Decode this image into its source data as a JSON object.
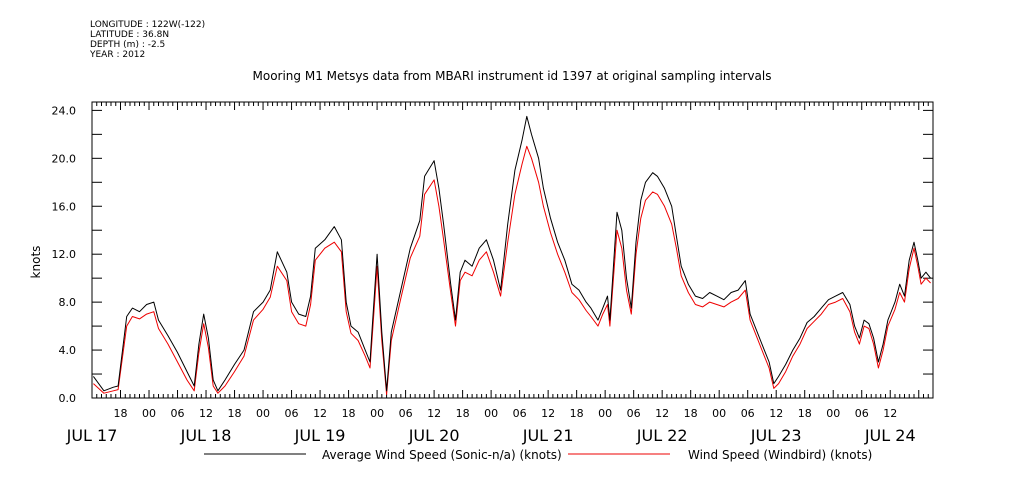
{
  "meta": {
    "longitude": "LONGITUDE : 122W(-122)",
    "latitude": "LATITUDE : 36.8N",
    "depth": "DEPTH (m) : -2.5",
    "year": "YEAR : 2012"
  },
  "chart_data": {
    "type": "line",
    "title": "Mooring M1 Metsys data from MBARI instrument id 1397 at original sampling intervals",
    "ylabel": "knots",
    "xlabel": "",
    "ylim": [
      0,
      24.7
    ],
    "xlim_hours": [
      12,
      189
    ],
    "yticks": [
      "0.0",
      "4.0",
      "8.0",
      "12.0",
      "16.0",
      "20.0",
      "24.0"
    ],
    "yticks_values": [
      0,
      4,
      8,
      12,
      16,
      20,
      24
    ],
    "x_hour_ticks": [
      {
        "h": 18,
        "label": "18"
      },
      {
        "h": 24,
        "label": "00"
      },
      {
        "h": 30,
        "label": "06"
      },
      {
        "h": 36,
        "label": "12"
      },
      {
        "h": 42,
        "label": "18"
      },
      {
        "h": 48,
        "label": "00"
      },
      {
        "h": 54,
        "label": "06"
      },
      {
        "h": 60,
        "label": "12"
      },
      {
        "h": 66,
        "label": "18"
      },
      {
        "h": 72,
        "label": "00"
      },
      {
        "h": 78,
        "label": "06"
      },
      {
        "h": 84,
        "label": "12"
      },
      {
        "h": 90,
        "label": "18"
      },
      {
        "h": 96,
        "label": "00"
      },
      {
        "h": 102,
        "label": "06"
      },
      {
        "h": 108,
        "label": "12"
      },
      {
        "h": 114,
        "label": "18"
      },
      {
        "h": 120,
        "label": "00"
      },
      {
        "h": 126,
        "label": "06"
      },
      {
        "h": 132,
        "label": "12"
      },
      {
        "h": 138,
        "label": "18"
      },
      {
        "h": 144,
        "label": "00"
      },
      {
        "h": 150,
        "label": "06"
      },
      {
        "h": 156,
        "label": "12"
      },
      {
        "h": 162,
        "label": "18"
      },
      {
        "h": 168,
        "label": "00"
      },
      {
        "h": 174,
        "label": "06"
      },
      {
        "h": 180,
        "label": "12"
      }
    ],
    "x_day_labels": [
      {
        "h": 12,
        "label": "JUL 17"
      },
      {
        "h": 36,
        "label": "JUL 18"
      },
      {
        "h": 60,
        "label": "JUL 19"
      },
      {
        "h": 84,
        "label": "JUL 20"
      },
      {
        "h": 108,
        "label": "JUL 21"
      },
      {
        "h": 132,
        "label": "JUL 22"
      },
      {
        "h": 156,
        "label": "JUL 23"
      },
      {
        "h": 180,
        "label": "JUL 24"
      }
    ],
    "x_units": "hours after 2012-07-16 12:00",
    "series": [
      {
        "name": "Average Wind Speed (Sonic-n/a) (knots)",
        "color": "#000000",
        "points": [
          [
            12.3,
            1.8
          ],
          [
            14.5,
            0.6
          ],
          [
            16.5,
            0.9
          ],
          [
            17.5,
            1.0
          ],
          [
            19.3,
            6.8
          ],
          [
            20.5,
            7.5
          ],
          [
            22,
            7.2
          ],
          [
            23.5,
            7.8
          ],
          [
            25,
            8.0
          ],
          [
            26,
            6.5
          ],
          [
            28,
            5.2
          ],
          [
            30,
            3.8
          ],
          [
            32,
            2.2
          ],
          [
            33.5,
            1.0
          ],
          [
            34.5,
            4.5
          ],
          [
            35.5,
            7.0
          ],
          [
            36.5,
            5.0
          ],
          [
            37.5,
            1.5
          ],
          [
            38.5,
            0.6
          ],
          [
            40,
            1.5
          ],
          [
            42,
            2.8
          ],
          [
            44,
            4.0
          ],
          [
            46,
            7.2
          ],
          [
            48,
            8.0
          ],
          [
            49.5,
            9.0
          ],
          [
            51,
            12.2
          ],
          [
            53,
            10.5
          ],
          [
            54,
            8.0
          ],
          [
            55.5,
            7.0
          ],
          [
            57,
            6.8
          ],
          [
            58,
            8.5
          ],
          [
            59,
            12.5
          ],
          [
            61,
            13.2
          ],
          [
            63,
            14.3
          ],
          [
            64.5,
            13.2
          ],
          [
            65.5,
            8.0
          ],
          [
            66.5,
            6.0
          ],
          [
            68,
            5.5
          ],
          [
            69.5,
            4.0
          ],
          [
            70.5,
            3.0
          ],
          [
            71,
            6.0
          ],
          [
            72,
            12.0
          ],
          [
            73,
            5.5
          ],
          [
            74,
            0.6
          ],
          [
            75,
            5.5
          ],
          [
            77,
            9.0
          ],
          [
            79,
            12.5
          ],
          [
            81,
            14.8
          ],
          [
            82,
            18.5
          ],
          [
            84,
            19.8
          ],
          [
            85,
            17.5
          ],
          [
            86,
            14.5
          ],
          [
            87.5,
            9.5
          ],
          [
            88.5,
            6.5
          ],
          [
            89.5,
            10.5
          ],
          [
            90.5,
            11.5
          ],
          [
            92,
            11.0
          ],
          [
            93.5,
            12.5
          ],
          [
            95,
            13.2
          ],
          [
            96.5,
            11.5
          ],
          [
            98,
            9.0
          ],
          [
            99.5,
            14.5
          ],
          [
            101,
            19.0
          ],
          [
            102.5,
            21.5
          ],
          [
            103.5,
            23.5
          ],
          [
            104.5,
            22.0
          ],
          [
            106,
            20.0
          ],
          [
            107,
            17.5
          ],
          [
            108.5,
            15.0
          ],
          [
            110,
            13.0
          ],
          [
            111.5,
            11.5
          ],
          [
            113,
            9.5
          ],
          [
            114.5,
            9.0
          ],
          [
            116,
            8.0
          ],
          [
            117,
            7.5
          ],
          [
            118.5,
            6.5
          ],
          [
            119.5,
            7.5
          ],
          [
            120.5,
            8.5
          ],
          [
            121,
            6.5
          ],
          [
            122.5,
            15.5
          ],
          [
            123.5,
            14.0
          ],
          [
            124.5,
            10.0
          ],
          [
            125.5,
            7.5
          ],
          [
            126.5,
            13.0
          ],
          [
            127.5,
            16.5
          ],
          [
            128.5,
            18.0
          ],
          [
            130,
            18.8
          ],
          [
            131,
            18.5
          ],
          [
            132.5,
            17.5
          ],
          [
            134,
            16.0
          ],
          [
            135,
            13.5
          ],
          [
            136,
            11.0
          ],
          [
            137.5,
            9.5
          ],
          [
            139,
            8.5
          ],
          [
            140.5,
            8.3
          ],
          [
            142,
            8.8
          ],
          [
            143.5,
            8.5
          ],
          [
            145,
            8.2
          ],
          [
            146.5,
            8.8
          ],
          [
            148,
            9.0
          ],
          [
            149.5,
            9.8
          ],
          [
            150.5,
            7.0
          ],
          [
            152,
            5.5
          ],
          [
            153.5,
            4.0
          ],
          [
            154.5,
            3.0
          ],
          [
            155.5,
            1.2
          ],
          [
            156.5,
            1.8
          ],
          [
            158,
            2.8
          ],
          [
            159.5,
            4.0
          ],
          [
            161,
            5.0
          ],
          [
            162.5,
            6.3
          ],
          [
            164,
            6.8
          ],
          [
            165.5,
            7.5
          ],
          [
            167,
            8.2
          ],
          [
            168.5,
            8.5
          ],
          [
            170,
            8.8
          ],
          [
            171.5,
            7.8
          ],
          [
            172.5,
            6.0
          ],
          [
            173.5,
            5.0
          ],
          [
            174.5,
            6.5
          ],
          [
            175.5,
            6.2
          ],
          [
            176.5,
            5.0
          ],
          [
            177.5,
            3.0
          ],
          [
            178.5,
            4.5
          ],
          [
            179.5,
            6.5
          ],
          [
            181,
            8.0
          ],
          [
            182,
            9.5
          ],
          [
            183,
            8.5
          ],
          [
            184,
            11.5
          ],
          [
            185,
            13.0
          ],
          [
            185.8,
            11.5
          ],
          [
            186.5,
            10.0
          ],
          [
            187.5,
            10.5
          ],
          [
            188.5,
            10.0
          ]
        ]
      },
      {
        "name": "Wind Speed (Windbird) (knots)",
        "color": "#ee0000",
        "points": [
          [
            12.3,
            1.2
          ],
          [
            14.5,
            0.4
          ],
          [
            16.5,
            0.6
          ],
          [
            17.5,
            0.7
          ],
          [
            19.3,
            6.0
          ],
          [
            20.5,
            6.8
          ],
          [
            22,
            6.6
          ],
          [
            23.5,
            7.0
          ],
          [
            25,
            7.2
          ],
          [
            26,
            5.8
          ],
          [
            28,
            4.5
          ],
          [
            30,
            3.0
          ],
          [
            32,
            1.5
          ],
          [
            33.5,
            0.6
          ],
          [
            34.5,
            3.8
          ],
          [
            35.5,
            6.2
          ],
          [
            36.5,
            4.2
          ],
          [
            37.5,
            1.0
          ],
          [
            38.5,
            0.4
          ],
          [
            40,
            1.0
          ],
          [
            42,
            2.2
          ],
          [
            44,
            3.5
          ],
          [
            46,
            6.5
          ],
          [
            48,
            7.4
          ],
          [
            49.5,
            8.4
          ],
          [
            51,
            11.0
          ],
          [
            53,
            9.8
          ],
          [
            54,
            7.2
          ],
          [
            55.5,
            6.2
          ],
          [
            57,
            6.0
          ],
          [
            58,
            7.8
          ],
          [
            59,
            11.5
          ],
          [
            61,
            12.5
          ],
          [
            63,
            13.0
          ],
          [
            64.5,
            12.2
          ],
          [
            65.5,
            7.2
          ],
          [
            66.5,
            5.4
          ],
          [
            68,
            4.8
          ],
          [
            69.5,
            3.5
          ],
          [
            70.5,
            2.5
          ],
          [
            71,
            5.2
          ],
          [
            72,
            11.0
          ],
          [
            73,
            4.8
          ],
          [
            74,
            0.3
          ],
          [
            75,
            4.8
          ],
          [
            77,
            8.3
          ],
          [
            79,
            11.7
          ],
          [
            81,
            13.5
          ],
          [
            82,
            17.0
          ],
          [
            84,
            18.2
          ],
          [
            85,
            16.0
          ],
          [
            86,
            13.2
          ],
          [
            87.5,
            8.8
          ],
          [
            88.5,
            6.0
          ],
          [
            89.5,
            9.8
          ],
          [
            90.5,
            10.5
          ],
          [
            92,
            10.2
          ],
          [
            93.5,
            11.5
          ],
          [
            95,
            12.2
          ],
          [
            96.5,
            10.5
          ],
          [
            98,
            8.5
          ],
          [
            99.5,
            13.0
          ],
          [
            101,
            17.0
          ],
          [
            102.5,
            19.5
          ],
          [
            103.5,
            21.0
          ],
          [
            104.5,
            20.0
          ],
          [
            106,
            18.0
          ],
          [
            107,
            16.0
          ],
          [
            108.5,
            13.8
          ],
          [
            110,
            12.0
          ],
          [
            111.5,
            10.5
          ],
          [
            113,
            8.8
          ],
          [
            114.5,
            8.2
          ],
          [
            116,
            7.3
          ],
          [
            117,
            6.8
          ],
          [
            118.5,
            6.0
          ],
          [
            119.5,
            7.0
          ],
          [
            120.5,
            7.8
          ],
          [
            121,
            6.0
          ],
          [
            122.5,
            14.0
          ],
          [
            123.5,
            12.5
          ],
          [
            124.5,
            9.0
          ],
          [
            125.5,
            7.0
          ],
          [
            126.5,
            12.0
          ],
          [
            127.5,
            15.0
          ],
          [
            128.5,
            16.5
          ],
          [
            130,
            17.2
          ],
          [
            131,
            17.0
          ],
          [
            132.5,
            16.0
          ],
          [
            134,
            14.5
          ],
          [
            135,
            12.5
          ],
          [
            136,
            10.2
          ],
          [
            137.5,
            8.8
          ],
          [
            139,
            7.8
          ],
          [
            140.5,
            7.6
          ],
          [
            142,
            8.0
          ],
          [
            143.5,
            7.8
          ],
          [
            145,
            7.6
          ],
          [
            146.5,
            8.0
          ],
          [
            148,
            8.3
          ],
          [
            149.5,
            9.0
          ],
          [
            150.5,
            6.5
          ],
          [
            152,
            5.0
          ],
          [
            153.5,
            3.5
          ],
          [
            154.5,
            2.5
          ],
          [
            155.5,
            0.8
          ],
          [
            156.5,
            1.2
          ],
          [
            158,
            2.2
          ],
          [
            159.5,
            3.5
          ],
          [
            161,
            4.5
          ],
          [
            162.5,
            5.8
          ],
          [
            164,
            6.4
          ],
          [
            165.5,
            7.0
          ],
          [
            167,
            7.8
          ],
          [
            168.5,
            8.0
          ],
          [
            170,
            8.3
          ],
          [
            171.5,
            7.2
          ],
          [
            172.5,
            5.5
          ],
          [
            173.5,
            4.5
          ],
          [
            174.5,
            6.0
          ],
          [
            175.5,
            5.8
          ],
          [
            176.5,
            4.5
          ],
          [
            177.5,
            2.5
          ],
          [
            178.5,
            4.0
          ],
          [
            179.5,
            6.0
          ],
          [
            181,
            7.4
          ],
          [
            182,
            8.8
          ],
          [
            183,
            8.0
          ],
          [
            184,
            10.8
          ],
          [
            185,
            12.5
          ],
          [
            185.8,
            11.0
          ],
          [
            186.5,
            9.5
          ],
          [
            187.5,
            10.0
          ],
          [
            188.5,
            9.6
          ]
        ]
      }
    ],
    "legend": [
      {
        "label": "Average Wind Speed (Sonic-n/a) (knots)",
        "color": "#000000"
      },
      {
        "label": "Wind Speed (Windbird) (knots)",
        "color": "#ee0000"
      }
    ],
    "legend_position": "bottom",
    "grid": false
  }
}
